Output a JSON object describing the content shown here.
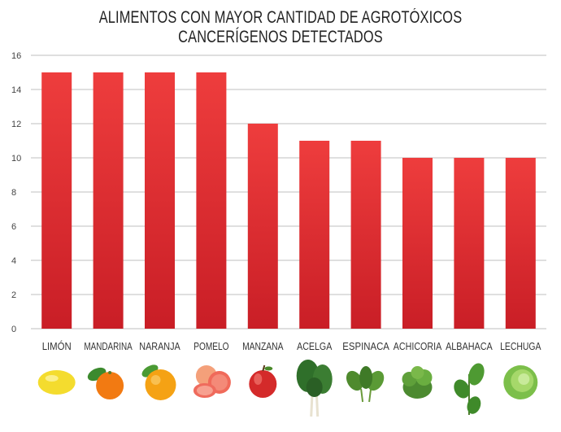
{
  "chart_data": {
    "type": "bar",
    "title": "ALIMENTOS CON MAYOR CANTIDAD DE AGROTÓXICOS CANCERÍGENOS DETECTADOS",
    "xlabel": "",
    "ylabel": "",
    "categories": [
      "LIMÓN",
      "MANDARINA",
      "NARANJA",
      "POMELO",
      "MANZANA",
      "ACELGA",
      "ESPINACA",
      "ACHICORIA",
      "ALBAHACA",
      "LECHUGA"
    ],
    "values": [
      15,
      15,
      15,
      15,
      12,
      11,
      11,
      10,
      10,
      10
    ],
    "ylim": [
      0,
      16
    ],
    "yticks": [
      0,
      2,
      4,
      6,
      8,
      10,
      12,
      14,
      16
    ],
    "grid": true,
    "legend": "none",
    "colors": {
      "bar_top": "#ee3d3d",
      "bar_bottom": "#c91e26",
      "grid": "#bfbfbf"
    },
    "icons": [
      "lemon-icon",
      "tangerine-icon",
      "orange-icon",
      "grapefruit-icon",
      "apple-icon",
      "chard-icon",
      "spinach-icon",
      "chicory-icon",
      "basil-icon",
      "lettuce-icon"
    ]
  }
}
